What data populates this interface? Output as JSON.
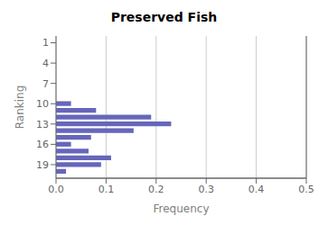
{
  "chart_data": {
    "type": "bar",
    "orientation": "horizontal",
    "title": "Preserved Fish",
    "xlabel": "Frequency",
    "ylabel": "Ranking",
    "x": [
      10,
      11,
      12,
      13,
      14,
      15,
      16,
      17,
      18,
      19,
      20
    ],
    "values": [
      0.03,
      0.08,
      0.19,
      0.23,
      0.155,
      0.07,
      0.03,
      0.065,
      0.11,
      0.09,
      0.02
    ],
    "xlim": [
      0,
      0.5
    ],
    "xticks": [
      {
        "value": 0,
        "label": "0.0"
      },
      0.1,
      0.2,
      0.3,
      0.4,
      0.5
    ],
    "ylim": [
      0,
      21
    ],
    "yticks": [
      1,
      4,
      7,
      10,
      13,
      16,
      19
    ],
    "color": "#6666bb",
    "grid": true
  }
}
